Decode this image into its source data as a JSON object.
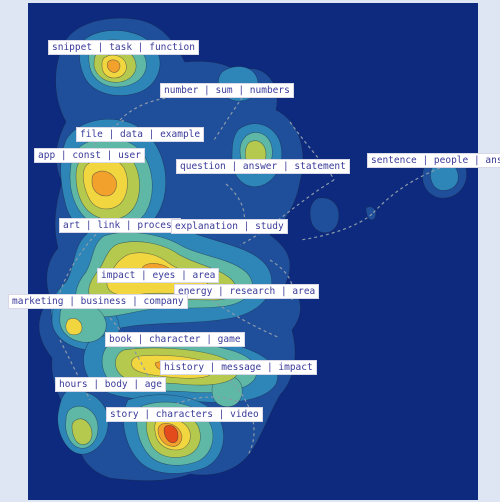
{
  "colors": {
    "ocean": "#0d2a7e",
    "margin": "#dde6f2",
    "level1": "#1f4e9b",
    "level2": "#2e86b8",
    "level3": "#5fb8a6",
    "level4": "#b4c94d",
    "level5": "#f2d640",
    "level6": "#f2a12c",
    "level7": "#e34a1c",
    "connector": "#8a9aaa",
    "label_text": "#3a3a9a"
  },
  "topic_labels": [
    {
      "id": "snippet",
      "text": "snippet | task | function"
    },
    {
      "id": "number",
      "text": "number | sum | numbers"
    },
    {
      "id": "file",
      "text": "file | data | example"
    },
    {
      "id": "app",
      "text": "app | const | user"
    },
    {
      "id": "question",
      "text": "question | answer | statement"
    },
    {
      "id": "sentence",
      "text": "sentence | people | answe"
    },
    {
      "id": "art",
      "text": "art | link | process"
    },
    {
      "id": "explanation",
      "text": "explanation | study"
    },
    {
      "id": "impact-eyes",
      "text": "impact | eyes | area"
    },
    {
      "id": "energy",
      "text": "energy | research | area"
    },
    {
      "id": "marketing",
      "text": "marketing | business | company"
    },
    {
      "id": "book",
      "text": "book | character | game"
    },
    {
      "id": "history",
      "text": "history | message | impact"
    },
    {
      "id": "hours",
      "text": "hours | body | age"
    },
    {
      "id": "story",
      "text": "story | characters | video"
    }
  ]
}
